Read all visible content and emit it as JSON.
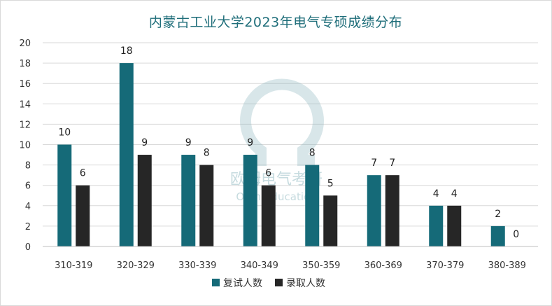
{
  "chart_data": {
    "type": "bar",
    "title": "内蒙古工业大学2023年电气专硕成绩分布",
    "xlabel": "",
    "ylabel": "",
    "ylim": [
      0,
      20
    ],
    "yticks": [
      0,
      2,
      4,
      6,
      8,
      10,
      12,
      14,
      16,
      18,
      20
    ],
    "grid": true,
    "legend_position": "bottom",
    "categories": [
      "310-319",
      "320-329",
      "330-339",
      "340-349",
      "350-359",
      "360-369",
      "370-379",
      "380-389"
    ],
    "series": [
      {
        "name": "复试人数",
        "color": "#156a78",
        "values": [
          10,
          18,
          9,
          9,
          8,
          7,
          4,
          2
        ]
      },
      {
        "name": "录取人数",
        "color": "#262626",
        "values": [
          6,
          9,
          8,
          6,
          5,
          7,
          4,
          0
        ]
      }
    ]
  },
  "watermark": {
    "text": "欧姆电气考研",
    "subtext": "Ohm Education"
  }
}
